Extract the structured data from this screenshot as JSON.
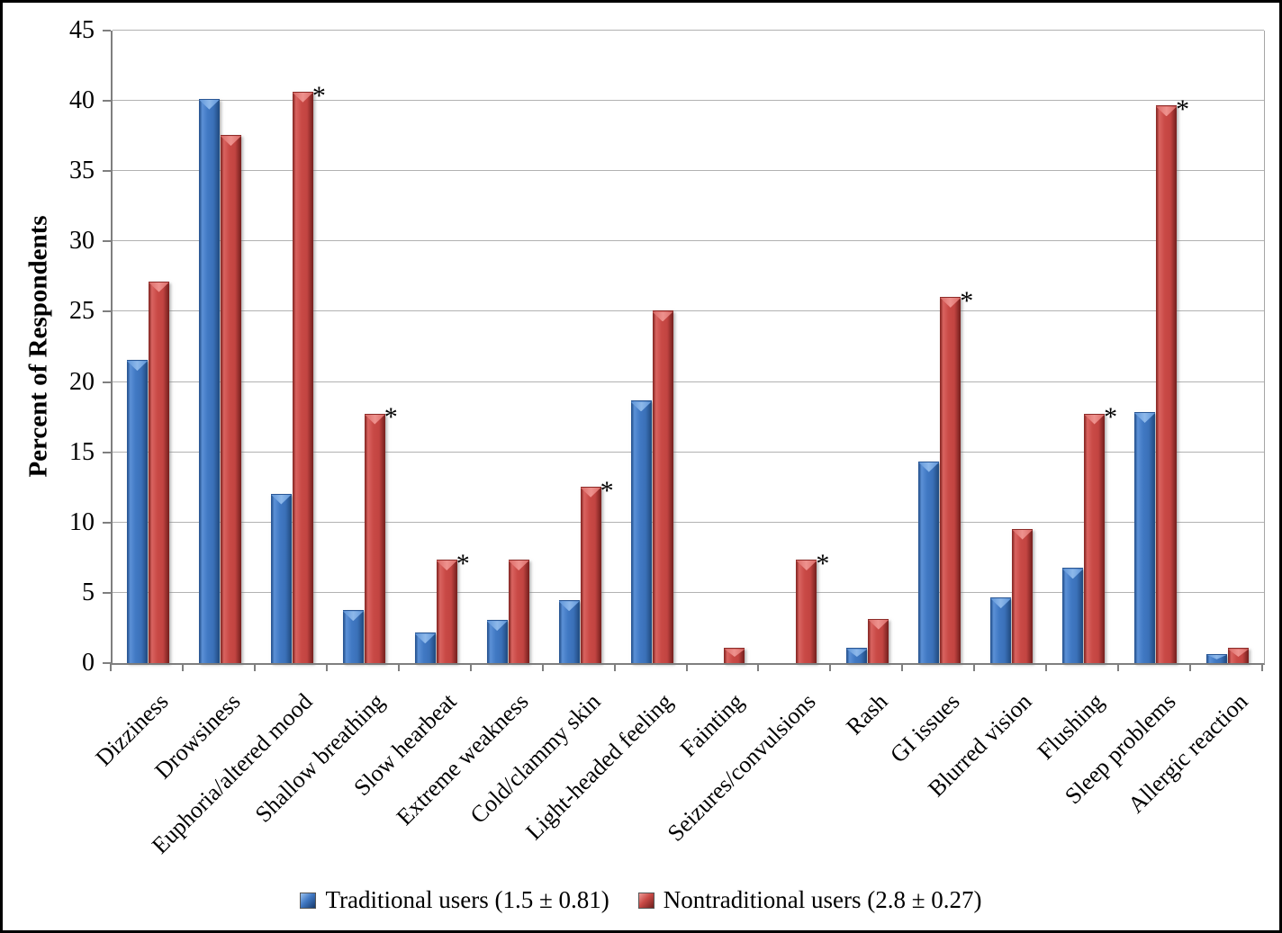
{
  "chart_data": {
    "type": "bar",
    "title": "",
    "xlabel": "",
    "ylabel": "Percent of Respondents",
    "ylim": [
      0,
      45
    ],
    "ytick_step": 5,
    "grid": "horizontal",
    "legend_position": "bottom",
    "annotation_symbol": "*",
    "annotation_meaning": "starred bars marked with asterisk in chart",
    "categories": [
      "Dizziness",
      "Drowsiness",
      "Euphoria/altered mood",
      "Shallow breathing",
      "Slow hearbeat",
      "Extreme weakness",
      "Cold/clammy skin",
      "Light-headed feeling",
      "Fainting",
      "Seizures/convulsions",
      "Rash",
      "GI issues",
      "Blurred vision",
      "Flushing",
      "Sleep problems",
      "Allergic reaction"
    ],
    "series": [
      {
        "name": "Traditional users (1.5 ± 0.81)",
        "color": "#4179c4",
        "values": [
          21.5,
          40.1,
          12.0,
          3.7,
          2.1,
          3.0,
          4.4,
          18.6,
          0,
          0,
          1.0,
          14.3,
          4.6,
          6.7,
          17.8,
          0.6
        ],
        "starred": [
          false,
          false,
          false,
          false,
          false,
          false,
          false,
          false,
          false,
          false,
          false,
          false,
          false,
          false,
          false,
          false
        ]
      },
      {
        "name": "Nontraditional users (2.8 ± 0.27)",
        "color": "#c94a46",
        "values": [
          27.1,
          37.5,
          40.6,
          17.7,
          7.3,
          7.3,
          12.5,
          25.0,
          1.0,
          7.3,
          3.1,
          26.0,
          9.5,
          17.7,
          39.6,
          1.0
        ],
        "starred": [
          false,
          false,
          true,
          true,
          true,
          false,
          true,
          false,
          false,
          true,
          false,
          true,
          false,
          true,
          true,
          false
        ]
      }
    ]
  }
}
